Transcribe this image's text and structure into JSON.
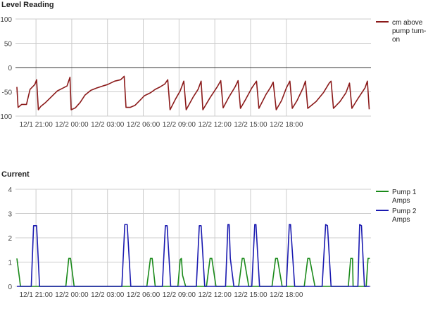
{
  "chart_data": [
    {
      "type": "line",
      "title": "Level Reading",
      "xlabel": "",
      "ylabel": "",
      "ylim": [
        -100,
        100
      ],
      "grid": true,
      "legend": "right",
      "x_tick_labels": [
        "12/1 21:00",
        "12/2 00:00",
        "12/2 03:00",
        "12/2 06:00",
        "12/2 09:00",
        "12/2 12:00",
        "12/2 15:00",
        "12/2 18:00"
      ],
      "y_tick_labels": [
        "100",
        "50",
        "0",
        "-50",
        "-100"
      ],
      "x_unit": "hours since 12/1 21:00",
      "series": [
        {
          "name": "cm above pump turn-on",
          "color": "#8b1a1a",
          "points": [
            [
              -1.6,
              -40
            ],
            [
              -1.5,
              -82
            ],
            [
              -1.2,
              -76
            ],
            [
              -0.8,
              -76
            ],
            [
              -0.5,
              -45
            ],
            [
              -0.1,
              -35
            ],
            [
              0.05,
              -25
            ],
            [
              0.2,
              -87
            ],
            [
              0.4,
              -80
            ],
            [
              0.8,
              -72
            ],
            [
              1.3,
              -60
            ],
            [
              1.8,
              -48
            ],
            [
              2.2,
              -43
            ],
            [
              2.6,
              -38
            ],
            [
              2.85,
              -20
            ],
            [
              2.95,
              -87
            ],
            [
              3.3,
              -83
            ],
            [
              3.7,
              -72
            ],
            [
              4.1,
              -57
            ],
            [
              4.6,
              -47
            ],
            [
              5.1,
              -42
            ],
            [
              5.6,
              -38
            ],
            [
              6.0,
              -35
            ],
            [
              6.6,
              -28
            ],
            [
              7.1,
              -25
            ],
            [
              7.4,
              -18
            ],
            [
              7.55,
              -82
            ],
            [
              7.9,
              -82
            ],
            [
              8.3,
              -78
            ],
            [
              8.7,
              -68
            ],
            [
              9.1,
              -58
            ],
            [
              9.6,
              -52
            ],
            [
              10.0,
              -45
            ],
            [
              10.4,
              -40
            ],
            [
              10.8,
              -34
            ],
            [
              11.05,
              -25
            ],
            [
              11.25,
              -87
            ],
            [
              11.7,
              -65
            ],
            [
              12.1,
              -48
            ],
            [
              12.4,
              -28
            ],
            [
              12.6,
              -87
            ],
            [
              13.2,
              -60
            ],
            [
              13.6,
              -45
            ],
            [
              13.85,
              -28
            ],
            [
              14.0,
              -87
            ],
            [
              14.6,
              -62
            ],
            [
              15.2,
              -40
            ],
            [
              15.5,
              -27
            ],
            [
              15.7,
              -83
            ],
            [
              16.2,
              -60
            ],
            [
              16.7,
              -40
            ],
            [
              16.95,
              -27
            ],
            [
              17.15,
              -84
            ],
            [
              17.6,
              -65
            ],
            [
              18.1,
              -42
            ],
            [
              18.5,
              -28
            ],
            [
              18.7,
              -84
            ],
            [
              19.3,
              -55
            ],
            [
              19.7,
              -40
            ],
            [
              19.9,
              -30
            ],
            [
              20.15,
              -87
            ],
            [
              20.6,
              -68
            ],
            [
              21.0,
              -42
            ],
            [
              21.3,
              -28
            ],
            [
              21.5,
              -84
            ],
            [
              21.9,
              -68
            ],
            [
              22.4,
              -42
            ],
            [
              22.6,
              -28
            ],
            [
              22.8,
              -84
            ],
            [
              23.5,
              -70
            ],
            [
              24.1,
              -52
            ],
            [
              24.6,
              -32
            ],
            [
              24.75,
              -28
            ],
            [
              24.95,
              -84
            ],
            [
              25.5,
              -70
            ],
            [
              26.0,
              -52
            ],
            [
              26.3,
              -32
            ],
            [
              26.5,
              -84
            ],
            [
              27.0,
              -64
            ],
            [
              27.6,
              -42
            ],
            [
              27.8,
              -28
            ],
            [
              27.95,
              -86
            ]
          ]
        }
      ]
    },
    {
      "type": "line",
      "title": "Current",
      "xlabel": "",
      "ylabel": "",
      "ylim": [
        0,
        4
      ],
      "grid": true,
      "legend": "right",
      "x_tick_labels": [
        "12/1 21:00",
        "12/2 00:00",
        "12/2 03:00",
        "12/2 06:00",
        "12/2 09:00",
        "12/2 12:00",
        "12/2 15:00",
        "12/2 18:00"
      ],
      "y_tick_labels": [
        "4",
        "3",
        "2",
        "1",
        "0"
      ],
      "x_unit": "hours since 12/1 21:00",
      "series": [
        {
          "name": "Pump 1 Amps",
          "color": "#1a8a1a",
          "points": [
            [
              -1.6,
              1.15
            ],
            [
              -1.4,
              0.4
            ],
            [
              -1.3,
              0
            ],
            [
              2.5,
              0
            ],
            [
              2.75,
              1.15
            ],
            [
              2.9,
              1.15
            ],
            [
              3.2,
              0
            ],
            [
              9.3,
              0
            ],
            [
              9.6,
              1.15
            ],
            [
              9.75,
              1.15
            ],
            [
              10.0,
              0
            ],
            [
              11.9,
              0
            ],
            [
              12.1,
              1.1
            ],
            [
              12.2,
              1.15
            ],
            [
              12.3,
              0.45
            ],
            [
              12.55,
              0
            ],
            [
              14.3,
              0
            ],
            [
              14.6,
              1.15
            ],
            [
              14.75,
              1.15
            ],
            [
              15.1,
              0
            ],
            [
              17.0,
              0
            ],
            [
              17.3,
              1.15
            ],
            [
              17.45,
              1.15
            ],
            [
              17.85,
              0
            ],
            [
              19.8,
              0
            ],
            [
              20.1,
              1.15
            ],
            [
              20.25,
              1.15
            ],
            [
              20.65,
              0
            ],
            [
              22.5,
              0
            ],
            [
              22.8,
              1.15
            ],
            [
              22.95,
              1.15
            ],
            [
              23.4,
              0
            ],
            [
              26.2,
              0
            ],
            [
              26.4,
              1.15
            ],
            [
              26.55,
              1.15
            ],
            [
              26.6,
              0
            ],
            [
              27.7,
              0
            ],
            [
              27.85,
              1.15
            ],
            [
              28.0,
              1.15
            ]
          ]
        },
        {
          "name": "Pump 2 Amps",
          "color": "#1a1ab0",
          "points": [
            [
              -1.6,
              0
            ],
            [
              -0.4,
              0
            ],
            [
              -0.2,
              2.5
            ],
            [
              0.05,
              2.5
            ],
            [
              0.3,
              0
            ],
            [
              7.2,
              0
            ],
            [
              7.45,
              2.55
            ],
            [
              7.65,
              2.55
            ],
            [
              7.95,
              0
            ],
            [
              10.6,
              0
            ],
            [
              10.85,
              2.5
            ],
            [
              11.0,
              2.5
            ],
            [
              11.3,
              0
            ],
            [
              13.45,
              0
            ],
            [
              13.7,
              2.5
            ],
            [
              13.85,
              2.5
            ],
            [
              14.15,
              0
            ],
            [
              15.9,
              0
            ],
            [
              16.1,
              2.55
            ],
            [
              16.2,
              2.55
            ],
            [
              16.3,
              1.15
            ],
            [
              16.6,
              0
            ],
            [
              18.1,
              0
            ],
            [
              18.35,
              2.55
            ],
            [
              18.45,
              2.55
            ],
            [
              18.75,
              0
            ],
            [
              21.0,
              0
            ],
            [
              21.25,
              2.55
            ],
            [
              21.35,
              2.55
            ],
            [
              21.7,
              0
            ],
            [
              24.0,
              0
            ],
            [
              24.3,
              2.55
            ],
            [
              24.45,
              2.5
            ],
            [
              24.75,
              0
            ],
            [
              27.0,
              0
            ],
            [
              27.15,
              2.55
            ],
            [
              27.3,
              2.5
            ],
            [
              27.55,
              0
            ],
            [
              28.0,
              0
            ]
          ]
        }
      ]
    }
  ]
}
